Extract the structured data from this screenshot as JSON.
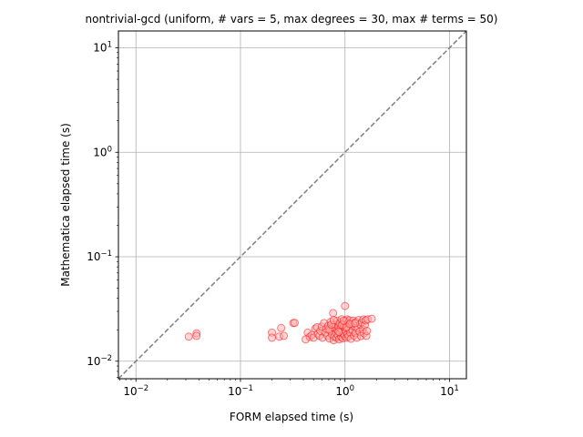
{
  "chart_data": {
    "type": "scatter",
    "title": "nontrivial-gcd (uniform, # vars = 5, max degrees = 30, max # terms = 50)",
    "xlabel": "FORM elapsed time (s)",
    "ylabel": "Mathematica elapsed time (s)",
    "xscale": "log",
    "yscale": "log",
    "xlim": [
      0.0068,
      14.5
    ],
    "ylim": [
      0.0068,
      14.5
    ],
    "grid": true,
    "x_ticks": [
      {
        "value": 0.01,
        "base": "10",
        "exp": "−2"
      },
      {
        "value": 0.1,
        "base": "10",
        "exp": "−1"
      },
      {
        "value": 1,
        "base": "10",
        "exp": "0"
      },
      {
        "value": 10,
        "base": "10",
        "exp": "1"
      }
    ],
    "y_ticks": [
      {
        "value": 0.01,
        "base": "10",
        "exp": "−2"
      },
      {
        "value": 0.1,
        "base": "10",
        "exp": "−1"
      },
      {
        "value": 1,
        "base": "10",
        "exp": "0"
      },
      {
        "value": 10,
        "base": "10",
        "exp": "1"
      }
    ],
    "reference_line": {
      "style": "dashed",
      "color": "#808080",
      "from": [
        0.0068,
        0.0068
      ],
      "to": [
        14.5,
        14.5
      ]
    },
    "marker": {
      "edge_color": "#ff0000",
      "face_color": "#ffb0b0",
      "alpha": 0.5
    },
    "points": [
      [
        0.032,
        0.0172
      ],
      [
        0.038,
        0.0185
      ],
      [
        0.038,
        0.0175
      ],
      [
        0.2,
        0.0188
      ],
      [
        0.2,
        0.0168
      ],
      [
        0.235,
        0.0172
      ],
      [
        0.245,
        0.0208
      ],
      [
        0.26,
        0.0175
      ],
      [
        0.32,
        0.0232
      ],
      [
        0.33,
        0.0233
      ],
      [
        0.42,
        0.0162
      ],
      [
        0.44,
        0.0188
      ],
      [
        0.46,
        0.0171
      ],
      [
        0.48,
        0.0178
      ],
      [
        0.5,
        0.0168
      ],
      [
        0.52,
        0.0205
      ],
      [
        0.54,
        0.0212
      ],
      [
        0.55,
        0.0182
      ],
      [
        0.57,
        0.0175
      ],
      [
        0.58,
        0.0195
      ],
      [
        0.6,
        0.0215
      ],
      [
        0.61,
        0.0168
      ],
      [
        0.63,
        0.0232
      ],
      [
        0.65,
        0.0188
      ],
      [
        0.66,
        0.0205
      ],
      [
        0.68,
        0.0176
      ],
      [
        0.69,
        0.0218
      ],
      [
        0.71,
        0.0165
      ],
      [
        0.72,
        0.0196
      ],
      [
        0.73,
        0.0238
      ],
      [
        0.75,
        0.0181
      ],
      [
        0.76,
        0.0212
      ],
      [
        0.77,
        0.0289
      ],
      [
        0.78,
        0.0159
      ],
      [
        0.79,
        0.0172
      ],
      [
        0.8,
        0.0205
      ],
      [
        0.81,
        0.0225
      ],
      [
        0.82,
        0.0186
      ],
      [
        0.83,
        0.0168
      ],
      [
        0.84,
        0.0244
      ],
      [
        0.85,
        0.0198
      ],
      [
        0.86,
        0.0176
      ],
      [
        0.87,
        0.0214
      ],
      [
        0.88,
        0.0162
      ],
      [
        0.89,
        0.0232
      ],
      [
        0.9,
        0.0188
      ],
      [
        0.91,
        0.0205
      ],
      [
        0.92,
        0.0171
      ],
      [
        0.93,
        0.0252
      ],
      [
        0.94,
        0.0194
      ],
      [
        0.95,
        0.0166
      ],
      [
        0.96,
        0.0228
      ],
      [
        0.97,
        0.0183
      ],
      [
        0.98,
        0.0212
      ],
      [
        0.99,
        0.0175
      ],
      [
        1.0,
        0.0338
      ],
      [
        1.01,
        0.0242
      ],
      [
        1.02,
        0.0195
      ],
      [
        1.03,
        0.0168
      ],
      [
        1.04,
        0.0218
      ],
      [
        1.05,
        0.0251
      ],
      [
        1.06,
        0.0181
      ],
      [
        1.07,
        0.0232
      ],
      [
        1.08,
        0.0172
      ],
      [
        1.09,
        0.0205
      ],
      [
        1.1,
        0.0246
      ],
      [
        1.12,
        0.0188
      ],
      [
        1.14,
        0.0164
      ],
      [
        1.16,
        0.0226
      ],
      [
        1.18,
        0.0198
      ],
      [
        1.2,
        0.0245
      ],
      [
        1.22,
        0.0176
      ],
      [
        1.24,
        0.0215
      ],
      [
        1.26,
        0.0186
      ],
      [
        1.28,
        0.0238
      ],
      [
        1.3,
        0.0168
      ],
      [
        1.32,
        0.0207
      ],
      [
        1.35,
        0.0248
      ],
      [
        1.38,
        0.0192
      ],
      [
        1.4,
        0.0225
      ],
      [
        1.42,
        0.0174
      ],
      [
        1.45,
        0.0236
      ],
      [
        1.48,
        0.0202
      ],
      [
        1.5,
        0.0251
      ],
      [
        1.52,
        0.0185
      ],
      [
        1.55,
        0.0222
      ],
      [
        1.58,
        0.0246
      ],
      [
        1.6,
        0.0175
      ],
      [
        1.62,
        0.0195
      ],
      [
        1.65,
        0.0252
      ],
      [
        1.8,
        0.0255
      ],
      [
        0.7,
        0.0201
      ],
      [
        0.74,
        0.0224
      ],
      [
        0.78,
        0.0247
      ],
      [
        0.87,
        0.0191
      ],
      [
        0.93,
        0.0223
      ],
      [
        0.97,
        0.0244
      ],
      [
        1.03,
        0.0211
      ],
      [
        1.11,
        0.0227
      ],
      [
        1.25,
        0.0231
      ]
    ]
  }
}
